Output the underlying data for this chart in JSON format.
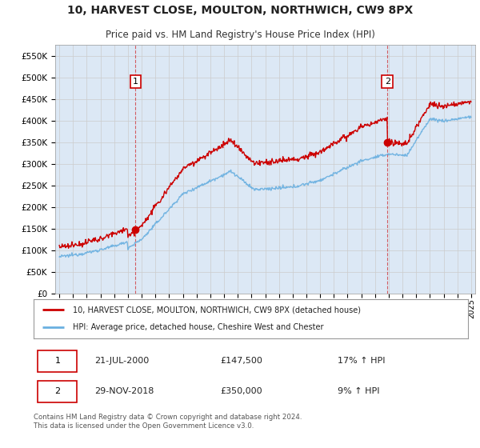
{
  "title": "10, HARVEST CLOSE, MOULTON, NORTHWICH, CW9 8PX",
  "subtitle": "Price paid vs. HM Land Registry's House Price Index (HPI)",
  "title_fontsize": 10,
  "subtitle_fontsize": 8.5,
  "ylim": [
    0,
    575000
  ],
  "yticks": [
    0,
    50000,
    100000,
    150000,
    200000,
    250000,
    300000,
    350000,
    400000,
    450000,
    500000,
    550000
  ],
  "ytick_labels": [
    "£0",
    "£50K",
    "£100K",
    "£150K",
    "£200K",
    "£250K",
    "£300K",
    "£350K",
    "£400K",
    "£450K",
    "£500K",
    "£550K"
  ],
  "xlim_start": 1994.7,
  "xlim_end": 2025.3,
  "xticks": [
    1995,
    1996,
    1997,
    1998,
    1999,
    2000,
    2001,
    2002,
    2003,
    2004,
    2005,
    2006,
    2007,
    2008,
    2009,
    2010,
    2011,
    2012,
    2013,
    2014,
    2015,
    2016,
    2017,
    2018,
    2019,
    2020,
    2021,
    2022,
    2023,
    2024,
    2025
  ],
  "grid_color": "#cccccc",
  "background_color": "#f0f4f8",
  "plot_bg_color": "#dce8f5",
  "fig_bg_color": "#ffffff",
  "red_line_color": "#cc0000",
  "blue_line_color": "#6ab0e0",
  "sale1_x": 2000.55,
  "sale1_y": 147500,
  "sale1_label": "1",
  "sale2_x": 2018.91,
  "sale2_y": 350000,
  "sale2_label": "2",
  "legend_red_label": "10, HARVEST CLOSE, MOULTON, NORTHWICH, CW9 8PX (detached house)",
  "legend_blue_label": "HPI: Average price, detached house, Cheshire West and Chester",
  "table_row1": [
    "1",
    "21-JUL-2000",
    "£147,500",
    "17% ↑ HPI"
  ],
  "table_row2": [
    "2",
    "29-NOV-2018",
    "£350,000",
    "9% ↑ HPI"
  ],
  "footer": "Contains HM Land Registry data © Crown copyright and database right 2024.\nThis data is licensed under the Open Government Licence v3.0."
}
